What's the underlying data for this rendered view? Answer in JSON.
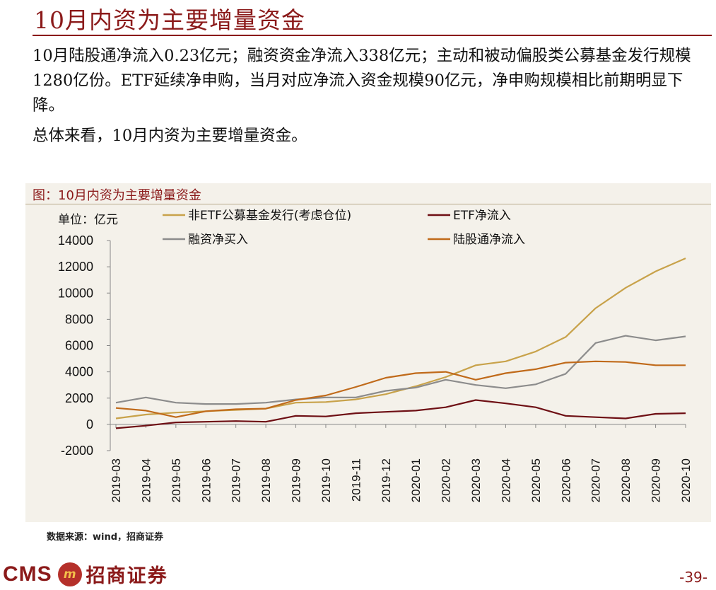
{
  "page": {
    "title": "10月内资为主要增量资金",
    "paragraph1": "10月陆股通净流入0.23亿元；融资资金净流入338亿元；主动和被动偏股类公募基金发行规模1280亿份。ETF延续净申购，当月对应净流入资金规模90亿元，净申购规模相比前期明显下降。",
    "paragraph2": "总体来看，10月内资为主要增量资金。",
    "source": "数据来源：wind，招商证券",
    "page_number": "-39-"
  },
  "logo": {
    "latin": "CMS",
    "chinese": "招商证券",
    "mark": "m"
  },
  "colors": {
    "title": "#8b1a1a",
    "panel": "#f4f1ea",
    "negative_tick": "#c00000"
  },
  "chart_data": {
    "type": "line",
    "title": "图：10月内资为主要增量资金",
    "unit_label": "单位：亿元",
    "xlabel": "",
    "ylabel": "亿元",
    "ylim": [
      -2000,
      14000
    ],
    "yticks": [
      14000,
      12000,
      10000,
      8000,
      6000,
      4000,
      2000,
      0,
      -2000
    ],
    "grid": false,
    "legend_position": "top",
    "categories": [
      "2019-03",
      "2019-04",
      "2019-05",
      "2019-06",
      "2019-07",
      "2019-08",
      "2019-09",
      "2019-10",
      "2019-11",
      "2019-12",
      "2020-01",
      "2020-02",
      "2020-03",
      "2020-04",
      "2020-05",
      "2020-06",
      "2020-07",
      "2020-08",
      "2020-09",
      "2020-10"
    ],
    "series": [
      {
        "name": "非ETF公募基金发行(考虑仓位)",
        "color": "#c8a24a",
        "values": [
          450,
          750,
          900,
          1000,
          1100,
          1200,
          1650,
          1700,
          1900,
          2300,
          2900,
          3600,
          4500,
          4800,
          5550,
          6650,
          8850,
          10400,
          11650,
          12650
        ]
      },
      {
        "name": "ETF净流入",
        "color": "#6e0f14",
        "values": [
          -300,
          -100,
          150,
          200,
          250,
          200,
          650,
          600,
          850,
          950,
          1050,
          1300,
          1850,
          1600,
          1300,
          650,
          550,
          450,
          800,
          850
        ]
      },
      {
        "name": "融资净买入",
        "color": "#8c8c8c",
        "values": [
          1650,
          2050,
          1650,
          1550,
          1550,
          1650,
          1900,
          2050,
          2050,
          2550,
          2800,
          3400,
          3000,
          2750,
          3050,
          3850,
          6200,
          6750,
          6400,
          6700
        ]
      },
      {
        "name": "陆股通净流入",
        "color": "#c06a1a",
        "values": [
          1250,
          1050,
          550,
          1000,
          1150,
          1200,
          1850,
          2200,
          2850,
          3550,
          3900,
          4000,
          3400,
          3900,
          4200,
          4700,
          4800,
          4750,
          4500,
          4500
        ]
      }
    ]
  }
}
